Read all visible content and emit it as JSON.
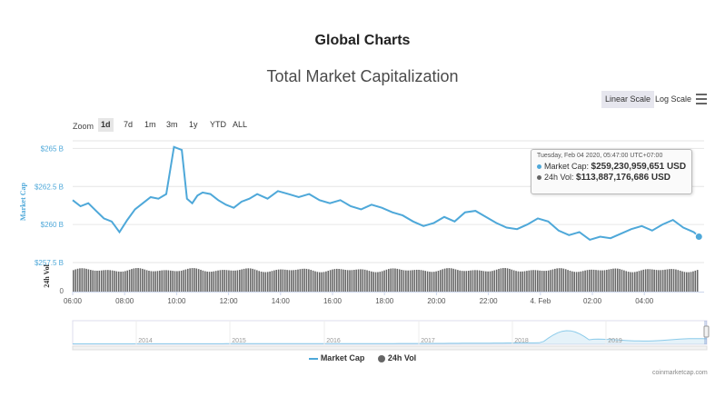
{
  "header": {
    "page_title": "Global Charts",
    "chart_title": "Total Market Capitalization"
  },
  "scale": {
    "linear_label": "Linear Scale",
    "log_label": "Log Scale",
    "menu_icon": "hamburger-menu-icon"
  },
  "zoom": {
    "label": "Zoom",
    "options": [
      "1d",
      "7d",
      "1m",
      "3m",
      "1y",
      "YTD",
      "ALL"
    ],
    "selected": "1d"
  },
  "tooltip": {
    "date": "Tuesday, Feb 04 2020, 05:47:00 UTC+07:00",
    "market_cap_label": "Market Cap:",
    "market_cap_value": "$259,230,959,651 USD",
    "vol_label": "24h Vol:",
    "vol_value": "$113,887,176,686 USD"
  },
  "legend": {
    "market_cap": "Market Cap",
    "vol": "24h Vol"
  },
  "credits": "coinmarketcap.com",
  "colors": {
    "market_cap": "#4ea8d9",
    "volume": "#666666",
    "axis_label": "#4ea8d9"
  },
  "chart_data": {
    "type": "line",
    "title": "Total Market Capitalization",
    "ylabel": "Market Cap",
    "y2label": "24h Vol",
    "ylim": [
      257.5,
      265.5
    ],
    "y_ticks": [
      257.5,
      260,
      262.5,
      265
    ],
    "y_tick_labels": [
      "$257.5 B",
      "$260 B",
      "$262.5 B",
      "$265 B"
    ],
    "vol_tick_labels": [
      "0"
    ],
    "x_ticks": [
      0,
      2,
      4,
      6,
      8,
      10,
      12,
      14,
      16,
      18,
      20,
      22
    ],
    "x_tick_labels": [
      "06:00",
      "08:00",
      "10:00",
      "12:00",
      "14:00",
      "16:00",
      "18:00",
      "20:00",
      "22:00",
      "4. Feb",
      "02:00",
      "04:00"
    ],
    "xlim": [
      0,
      24.3
    ],
    "series": [
      {
        "name": "Market Cap",
        "unit": "B USD",
        "x": [
          0,
          0.3,
          0.6,
          0.9,
          1.2,
          1.5,
          1.8,
          2.1,
          2.4,
          2.7,
          3.0,
          3.3,
          3.6,
          3.9,
          4.2,
          4.4,
          4.6,
          4.8,
          5.0,
          5.3,
          5.6,
          5.9,
          6.2,
          6.5,
          6.8,
          7.1,
          7.5,
          7.9,
          8.3,
          8.7,
          9.1,
          9.5,
          9.9,
          10.3,
          10.7,
          11.1,
          11.5,
          11.9,
          12.3,
          12.7,
          13.1,
          13.5,
          13.9,
          14.3,
          14.7,
          15.1,
          15.5,
          15.9,
          16.3,
          16.7,
          17.1,
          17.5,
          17.9,
          18.3,
          18.7,
          19.1,
          19.5,
          19.9,
          20.3,
          20.7,
          21.1,
          21.5,
          21.9,
          22.3,
          22.7,
          23.1,
          23.5,
          23.9,
          24.1
        ],
        "values": [
          261.6,
          261.2,
          261.4,
          260.9,
          260.4,
          260.2,
          259.5,
          260.3,
          261.0,
          261.4,
          261.8,
          261.7,
          262.0,
          265.1,
          264.9,
          261.7,
          261.4,
          261.9,
          262.1,
          262.0,
          261.6,
          261.3,
          261.1,
          261.5,
          261.7,
          262.0,
          261.7,
          262.2,
          262.0,
          261.8,
          262.0,
          261.6,
          261.4,
          261.6,
          261.2,
          261.0,
          261.3,
          261.1,
          260.8,
          260.6,
          260.2,
          259.9,
          260.1,
          260.5,
          260.2,
          260.8,
          260.9,
          260.5,
          260.1,
          259.8,
          259.7,
          260.0,
          260.4,
          260.2,
          259.6,
          259.3,
          259.5,
          259.0,
          259.2,
          259.1,
          259.4,
          259.7,
          259.9,
          259.6,
          260.0,
          260.3,
          259.8,
          259.5,
          259.2
        ]
      },
      {
        "name": "24h Vol",
        "unit": "B USD",
        "x_start": 0,
        "x_end": 24.1,
        "bar_count": 290,
        "value_range": [
          112.0,
          116.0
        ]
      }
    ],
    "navigator": {
      "tick_labels": [
        "2014",
        "2015",
        "2016",
        "2017",
        "2018",
        "2019"
      ]
    },
    "legend_position": "bottom-center",
    "grid": true
  }
}
